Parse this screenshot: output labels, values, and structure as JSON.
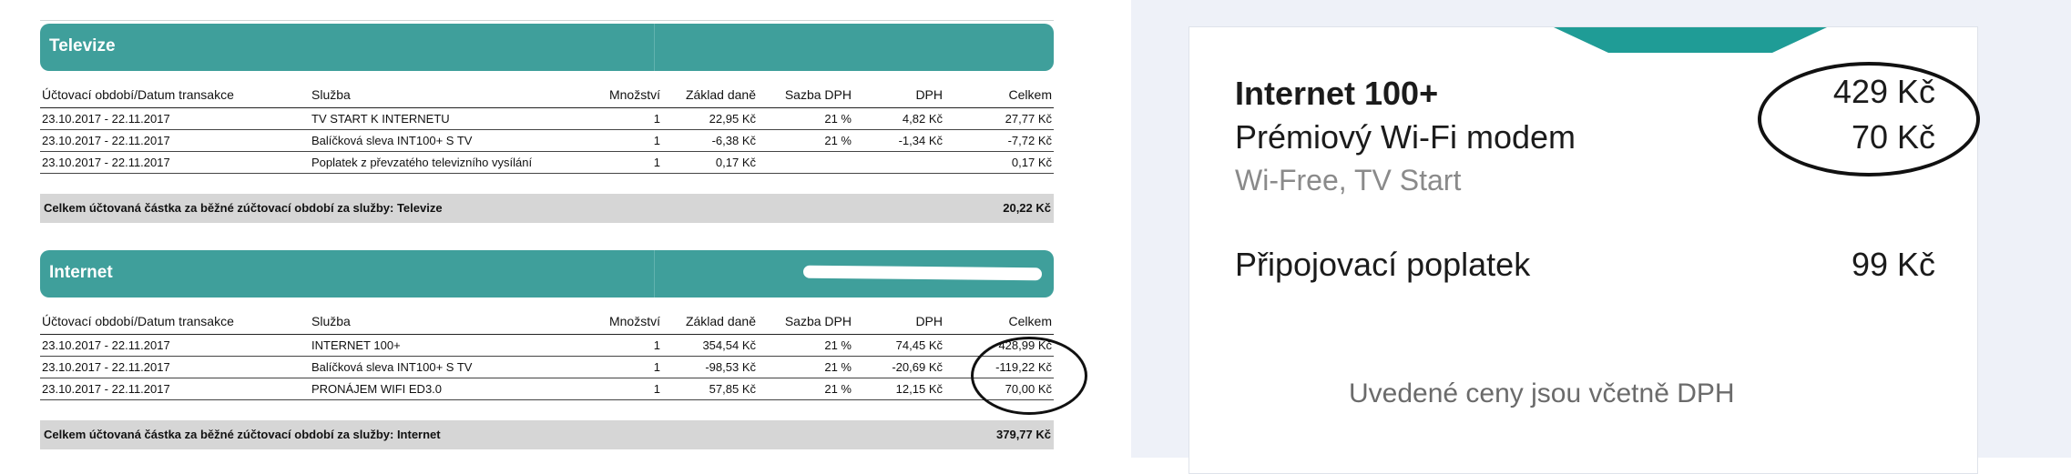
{
  "invoice": {
    "columns": {
      "period": "Účtovací období/Datum transakce",
      "service": "Služba",
      "qty": "Množství",
      "base": "Základ daně",
      "rate": "Sazba DPH",
      "vat": "DPH",
      "total": "Celkem"
    },
    "sections": [
      {
        "title": "Televize",
        "rows": [
          {
            "period": "23.10.2017 - 22.11.2017",
            "service": "TV START K INTERNETU",
            "qty": "1",
            "base": "22,95 Kč",
            "rate": "21 %",
            "vat": "4,82 Kč",
            "total": "27,77 Kč"
          },
          {
            "period": "23.10.2017 - 22.11.2017",
            "service": "Balíčková sleva INT100+ S TV",
            "qty": "1",
            "base": "-6,38 Kč",
            "rate": "21 %",
            "vat": "-1,34 Kč",
            "total": "-7,72 Kč"
          },
          {
            "period": "23.10.2017 - 22.11.2017",
            "service": "Poplatek z převzatého televizního vysílání",
            "qty": "1",
            "base": "0,17 Kč",
            "rate": "",
            "vat": "",
            "total": "0,17 Kč"
          }
        ],
        "total_label": "Celkem účtovaná částka za běžné zúčtovací období za služby: Televize",
        "total_value": "20,22 Kč"
      },
      {
        "title": "Internet",
        "rows": [
          {
            "period": "23.10.2017 - 22.11.2017",
            "service": "INTERNET 100+",
            "qty": "1",
            "base": "354,54 Kč",
            "rate": "21 %",
            "vat": "74,45 Kč",
            "total": "428,99 Kč"
          },
          {
            "period": "23.10.2017 - 22.11.2017",
            "service": "Balíčková sleva INT100+ S TV",
            "qty": "1",
            "base": "-98,53 Kč",
            "rate": "21 %",
            "vat": "-20,69 Kč",
            "total": "-119,22 Kč"
          },
          {
            "period": "23.10.2017 - 22.11.2017",
            "service": "PRONÁJEM WIFI ED3.0",
            "qty": "1",
            "base": "57,85 Kč",
            "rate": "21 %",
            "vat": "12,15 Kč",
            "total": "70,00 Kč"
          }
        ],
        "total_label": "Celkem účtovaná částka za běžné zúčtovací období za služby: Internet",
        "total_value": "379,77 Kč"
      }
    ]
  },
  "offer": {
    "plan_name": "Internet 100+",
    "plan_price": "429 Kč",
    "modem_name": "Prémiový Wi-Fi modem",
    "modem_price": "70 Kč",
    "extras": "Wi-Free, TV Start",
    "fee_name": "Připojovací poplatek",
    "fee_price": "99 Kč",
    "note": "Uvedené ceny jsou včetně DPH"
  },
  "colors": {
    "teal_header": "#3f9f9b",
    "teal_tab": "#1f9c96",
    "total_bar": "#d6d6d6",
    "panel_background": "#eef1f8"
  }
}
